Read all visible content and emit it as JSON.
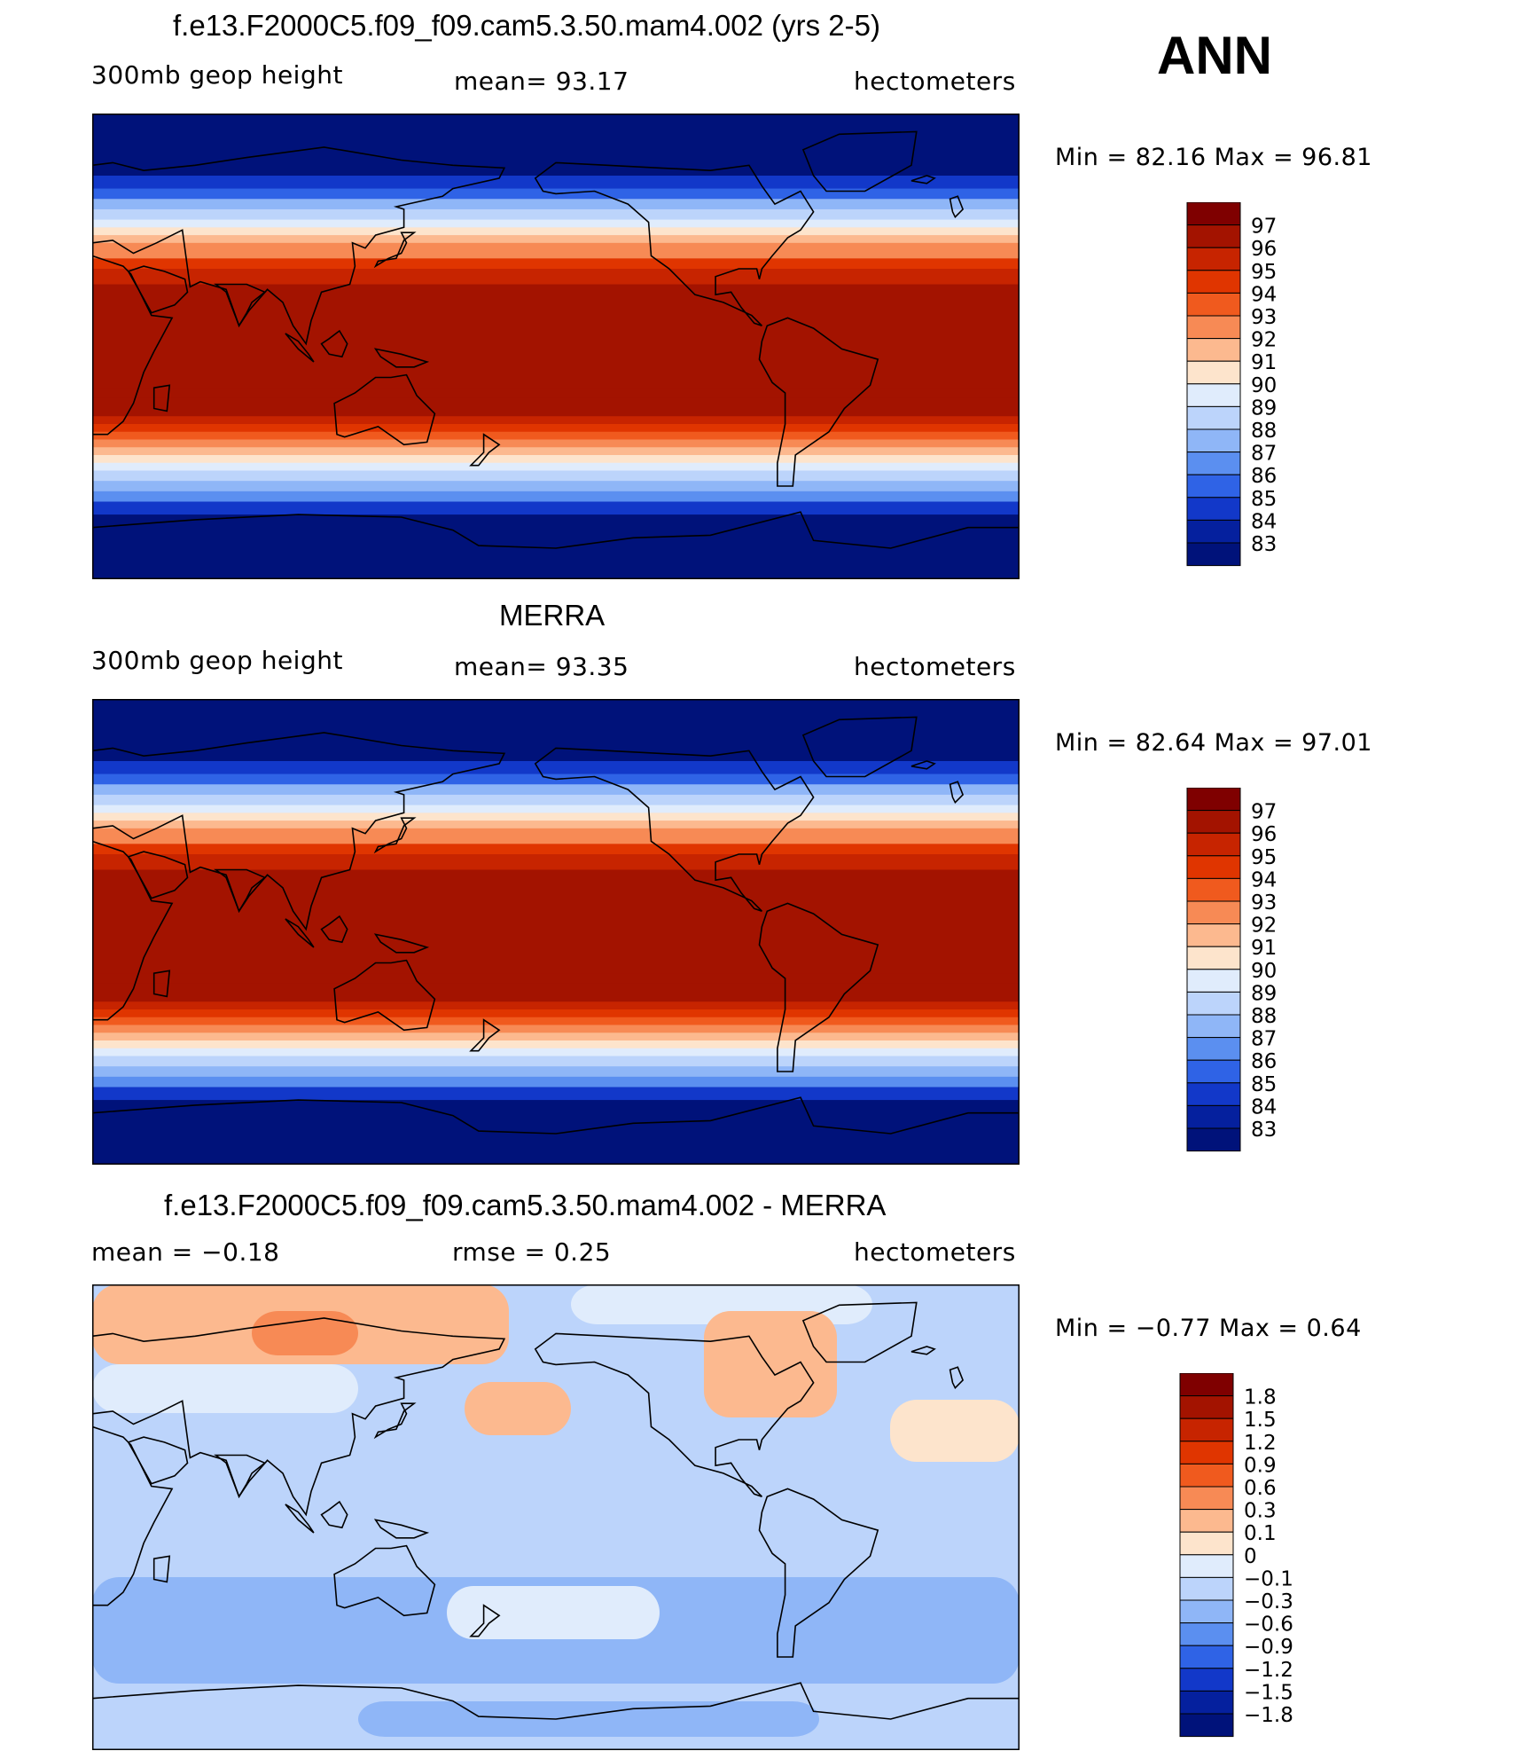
{
  "season": "ANN",
  "panels": [
    {
      "id": "model",
      "title": "f.e13.F2000C5.f09_f09.cam5.3.50.mam4.002 (yrs 2-5)",
      "left_label": "300mb geop height",
      "center_label": "mean=   93.17",
      "right_label": "hectometers",
      "minmax": "Min =   82.16 Max =   96.81",
      "colorbar_levels": [
        "97",
        "96",
        "95",
        "94",
        "93",
        "92",
        "91",
        "90",
        "89",
        "88",
        "87",
        "86",
        "85",
        "84",
        "83"
      ],
      "colorbar_colors": [
        "#7f0000",
        "#a31300",
        "#c72400",
        "#e03500",
        "#f05a1e",
        "#f78a55",
        "#fcb98f",
        "#fde4cc",
        "#e0ecfc",
        "#bcd4fb",
        "#8fb6f7",
        "#5b8ff0",
        "#2f63e6",
        "#1238c9",
        "#05209e",
        "#00127a"
      ],
      "value_range": [
        82.16,
        96.81
      ]
    },
    {
      "id": "obs",
      "title": "MERRA",
      "left_label": "300mb geop height",
      "center_label": "mean=   93.35",
      "right_label": "hectometers",
      "minmax": "Min =   82.64 Max =   97.01",
      "colorbar_levels": [
        "97",
        "96",
        "95",
        "94",
        "93",
        "92",
        "91",
        "90",
        "89",
        "88",
        "87",
        "86",
        "85",
        "84",
        "83"
      ],
      "colorbar_colors": [
        "#7f0000",
        "#a31300",
        "#c72400",
        "#e03500",
        "#f05a1e",
        "#f78a55",
        "#fcb98f",
        "#fde4cc",
        "#e0ecfc",
        "#bcd4fb",
        "#8fb6f7",
        "#5b8ff0",
        "#2f63e6",
        "#1238c9",
        "#05209e",
        "#00127a"
      ],
      "value_range": [
        82.64,
        97.01
      ]
    },
    {
      "id": "diff",
      "title": "f.e13.F2000C5.f09_f09.cam5.3.50.mam4.002 - MERRA",
      "left_label": "mean =   −0.18",
      "center_label": "rmse =    0.25",
      "right_label": "hectometers",
      "minmax": "Min =   −0.77 Max =    0.64",
      "colorbar_levels": [
        "1.8",
        "1.5",
        "1.2",
        "0.9",
        "0.6",
        "0.3",
        "0.1",
        "0",
        "−0.1",
        "−0.3",
        "−0.6",
        "−0.9",
        "−1.2",
        "−1.5",
        "−1.8"
      ],
      "colorbar_colors": [
        "#7f0000",
        "#a31300",
        "#c72400",
        "#e03500",
        "#f05a1e",
        "#f78a55",
        "#fcb98f",
        "#fde4cc",
        "#e0ecfc",
        "#bcd4fb",
        "#8fb6f7",
        "#5b8ff0",
        "#2f63e6",
        "#1238c9",
        "#05209e",
        "#00127a"
      ],
      "value_range": [
        -0.77,
        0.64
      ]
    }
  ]
}
